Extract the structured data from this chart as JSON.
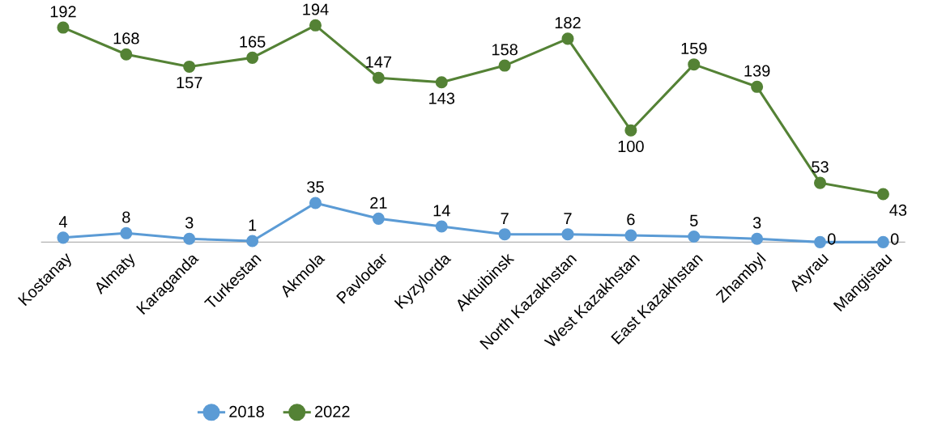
{
  "chart_data": {
    "type": "line",
    "categories": [
      "Kostanay",
      "Almaty",
      "Karaganda",
      "Turkestan",
      "Akmola",
      "Pavlodar",
      "Kyzylorda",
      "Aktuibinsk",
      "North Kazakhstan",
      "West Kazakhstan",
      "East Kazakhstan",
      "Zhambyl",
      "Atyrau",
      "Mangistau"
    ],
    "series": [
      {
        "name": "2018",
        "color": "#5b9bd5",
        "values": [
          4,
          8,
          3,
          1,
          35,
          21,
          14,
          7,
          7,
          6,
          5,
          3,
          0,
          0
        ]
      },
      {
        "name": "2022",
        "color": "#548235",
        "values": [
          192,
          168,
          157,
          165,
          194,
          147,
          143,
          158,
          182,
          100,
          159,
          139,
          53,
          43
        ]
      }
    ],
    "data_labels": true,
    "legend": "bottom",
    "marker": "circle",
    "line_style": "solid"
  }
}
